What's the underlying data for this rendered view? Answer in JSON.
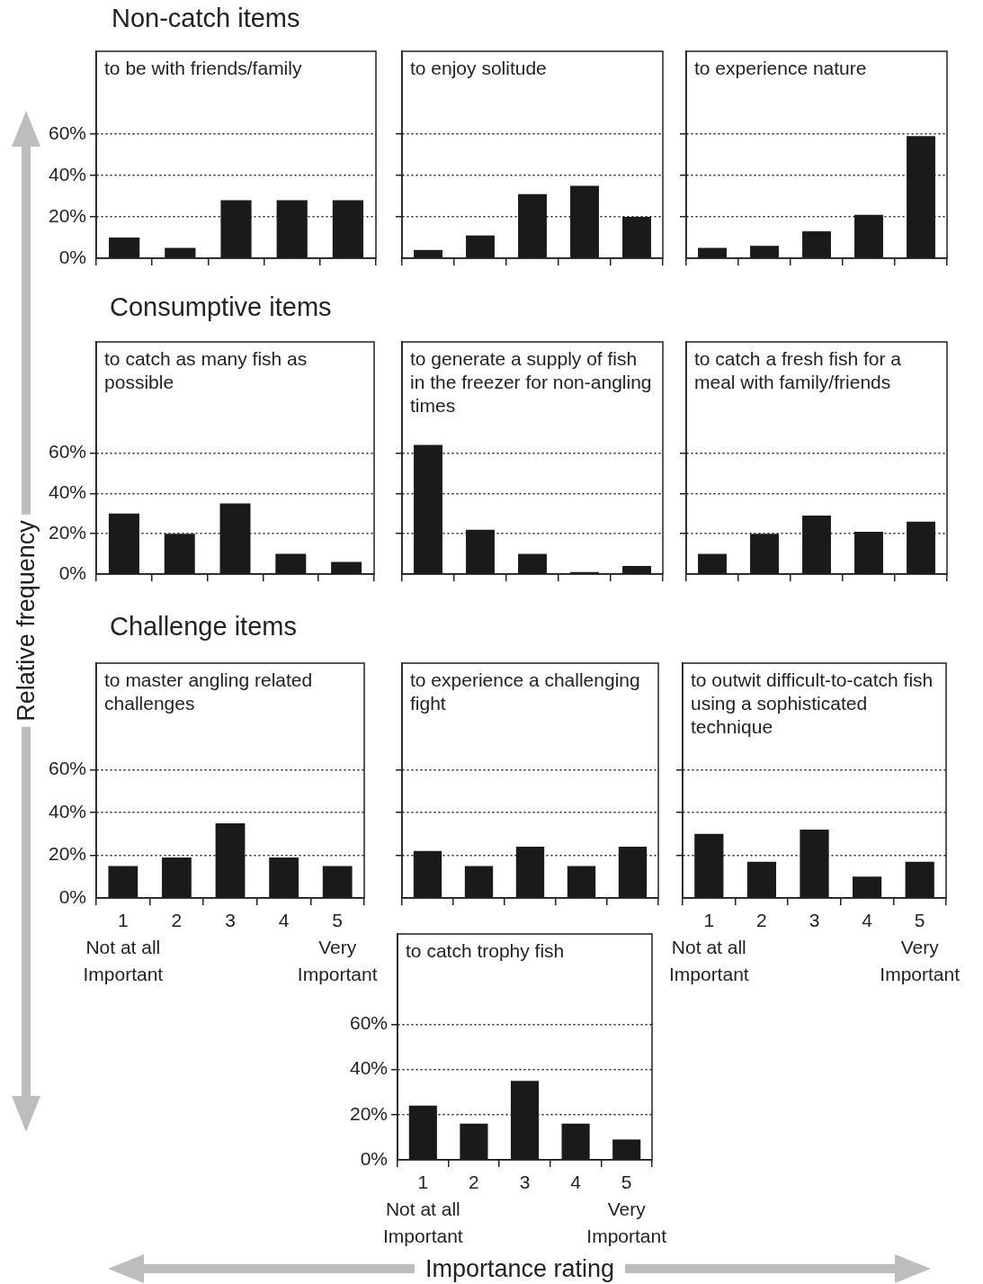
{
  "chart_data": [
    {
      "type": "other",
      "title": "Non-catch items"
    },
    {
      "type": "bar",
      "title": "to be with friends/family",
      "categories": [
        "1",
        "2",
        "3",
        "4",
        "5"
      ],
      "values": [
        10,
        5,
        28,
        28,
        28
      ],
      "color": "#1a1a1a",
      "ylim": [
        0,
        100
      ],
      "yticks": [
        {
          "value": 0,
          "label": "0%"
        },
        {
          "value": 20,
          "label": "20%"
        },
        {
          "value": 40,
          "label": "40%"
        },
        {
          "value": 60,
          "label": "60%"
        }
      ],
      "grid": "y",
      "tick_labels": "y"
    },
    {
      "type": "bar",
      "title": "to enjoy solitude",
      "categories": [
        "1",
        "2",
        "3",
        "4",
        "5"
      ],
      "values": [
        4,
        11,
        31,
        35,
        20
      ],
      "color": "#1a1a1a",
      "ylim": [
        0,
        100
      ],
      "yticks": [
        {
          "value": 0,
          "label": null
        },
        {
          "value": 20,
          "label": null
        },
        {
          "value": 40,
          "label": null
        },
        {
          "value": 60,
          "label": null
        }
      ],
      "grid": "y",
      "tick_labels": false
    },
    {
      "type": "bar",
      "title": "to experience nature",
      "categories": [
        "1",
        "2",
        "3",
        "4",
        "5"
      ],
      "values": [
        5,
        6,
        13,
        21,
        59
      ],
      "color": "#1a1a1a",
      "ylim": [
        0,
        100
      ],
      "yticks": [
        {
          "value": 0,
          "label": null
        },
        {
          "value": 20,
          "label": null
        },
        {
          "value": 40,
          "label": null
        },
        {
          "value": 60,
          "label": null
        }
      ],
      "grid": "y",
      "tick_labels": false
    },
    {
      "type": "other",
      "title": "Consumptive items"
    },
    {
      "type": "bar",
      "title": "to catch as many fish as possible",
      "categories": [
        "1",
        "2",
        "3",
        "4",
        "5"
      ],
      "values": [
        30,
        20,
        35,
        10,
        6
      ],
      "color": "#1a1a1a",
      "ylim": [
        0,
        115
      ],
      "yticks": [
        {
          "value": 0,
          "label": "0%"
        },
        {
          "value": 20,
          "label": "20%"
        },
        {
          "value": 40,
          "label": "40%"
        },
        {
          "value": 60,
          "label": "60%"
        }
      ],
      "grid": "y",
      "tick_labels": "y"
    },
    {
      "type": "bar",
      "title": "to generate a supply of fish in the freezer for non-angling times",
      "categories": [
        "1",
        "2",
        "3",
        "4",
        "5"
      ],
      "values": [
        64,
        22,
        10,
        1,
        4
      ],
      "color": "#1a1a1a",
      "ylim": [
        0,
        115
      ],
      "yticks": [
        {
          "value": 0,
          "label": null
        },
        {
          "value": 20,
          "label": null
        },
        {
          "value": 40,
          "label": null
        },
        {
          "value": 60,
          "label": null
        }
      ],
      "grid": "y",
      "tick_labels": false
    },
    {
      "type": "bar",
      "title": "to catch a fresh fish for a  meal with family/friends",
      "categories": [
        "1",
        "2",
        "3",
        "4",
        "5"
      ],
      "values": [
        10,
        20,
        29,
        21,
        26
      ],
      "color": "#1a1a1a",
      "ylim": [
        0,
        115
      ],
      "yticks": [
        {
          "value": 0,
          "label": null
        },
        {
          "value": 20,
          "label": null
        },
        {
          "value": 40,
          "label": null
        },
        {
          "value": 60,
          "label": null
        }
      ],
      "grid": "y",
      "tick_labels": false
    },
    {
      "type": "other",
      "title": "Challenge items"
    },
    {
      "type": "bar",
      "title": "to master angling related challenges",
      "categories": [
        "1",
        "2",
        "3",
        "4",
        "5"
      ],
      "values": [
        15,
        19,
        35,
        19,
        15
      ],
      "color": "#1a1a1a",
      "ylim": [
        0,
        110
      ],
      "yticks": [
        {
          "value": 0,
          "label": "0%"
        },
        {
          "value": 20,
          "label": "20%"
        },
        {
          "value": 40,
          "label": "40%"
        },
        {
          "value": 60,
          "label": "60%"
        }
      ],
      "grid": "y",
      "annotations": [
        "Not at all Important",
        "Very Important"
      ]
    },
    {
      "type": "bar",
      "title": "to experience a challenging fight",
      "categories": [
        "1",
        "2",
        "3",
        "4",
        "5"
      ],
      "values": [
        22,
        15,
        24,
        15,
        24
      ],
      "color": "#1a1a1a",
      "ylim": [
        0,
        110
      ],
      "yticks": [
        {
          "value": 0,
          "label": null
        },
        {
          "value": 20,
          "label": null
        },
        {
          "value": 40,
          "label": null
        },
        {
          "value": 60,
          "label": null
        }
      ],
      "grid": "y",
      "tick_labels": false
    },
    {
      "type": "bar",
      "title": "to outwit difficult-to-catch fish using a sophisticated technique",
      "categories": [
        "1",
        "2",
        "3",
        "4",
        "5"
      ],
      "values": [
        30,
        17,
        32,
        10,
        17
      ],
      "color": "#1a1a1a",
      "ylim": [
        0,
        110
      ],
      "yticks": [
        {
          "value": 0,
          "label": null
        },
        {
          "value": 20,
          "label": null
        },
        {
          "value": 40,
          "label": null
        },
        {
          "value": 60,
          "label": null
        }
      ],
      "grid": "y",
      "tick_labels": "x",
      "annotations": [
        "Not at all Important",
        "Very Important"
      ]
    },
    {
      "type": "bar",
      "title": "to catch trophy fish",
      "categories": [
        "1",
        "2",
        "3",
        "4",
        "5"
      ],
      "values": [
        24,
        16,
        35,
        16,
        9
      ],
      "color": "#1a1a1a",
      "ylim": [
        0,
        100
      ],
      "yticks": [
        {
          "value": 0,
          "label": "0%"
        },
        {
          "value": 20,
          "label": "20%"
        },
        {
          "value": 40,
          "label": "40%"
        },
        {
          "value": 60,
          "label": "60%"
        }
      ],
      "grid": "y",
      "annotations": [
        "Not at all Important",
        "Very Important"
      ]
    },
    {
      "type": "other",
      "ylabel": "Relative frequency",
      "xlabel": "Importance rating"
    }
  ]
}
